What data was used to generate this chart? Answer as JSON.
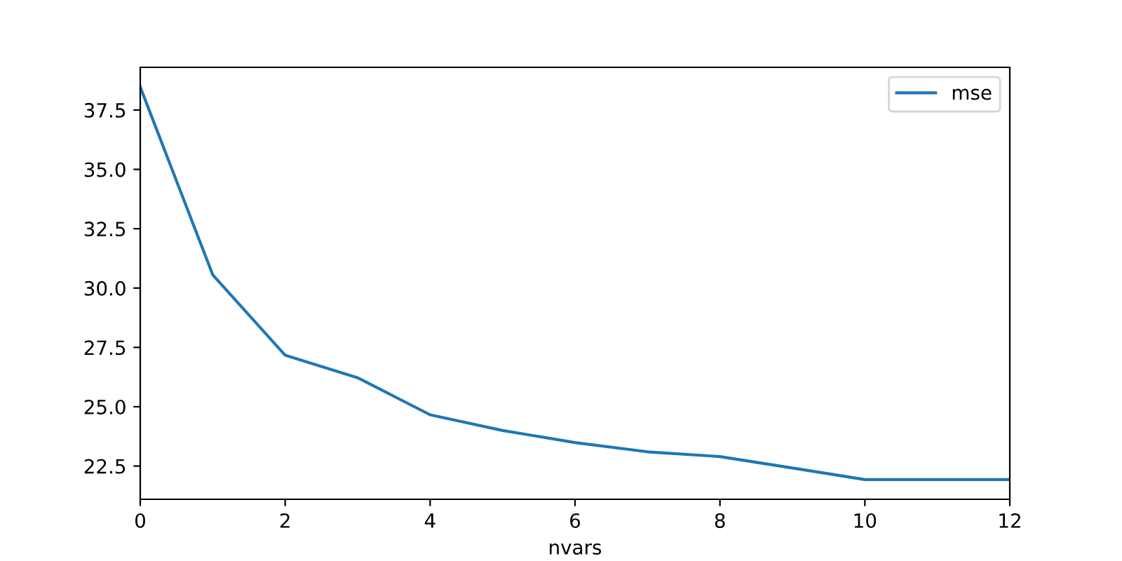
{
  "chart_data": {
    "type": "line",
    "xlabel": "nvars",
    "x": [
      0,
      1,
      2,
      3,
      4,
      5,
      6,
      7,
      8,
      9,
      10,
      11,
      12
    ],
    "series": [
      {
        "name": "mse",
        "color": "#1f77b4",
        "values": [
          38.47,
          30.56,
          27.17,
          26.22,
          24.66,
          24.0,
          23.49,
          23.1,
          22.9,
          22.42,
          21.93,
          21.93,
          21.93
        ]
      }
    ],
    "xlim": [
      0,
      12
    ],
    "xticks": [
      0,
      2,
      4,
      6,
      8,
      10,
      12
    ],
    "ylim": [
      21.1,
      39.3
    ],
    "yticks": [
      22.5,
      {
        "value": 25,
        "label": "25.0"
      },
      27.5,
      {
        "value": 30,
        "label": "30.0"
      },
      32.5,
      {
        "value": 35,
        "label": "35.0"
      },
      37.5
    ],
    "legend": "upper right",
    "grid": false,
    "marker": "none",
    "line_style": "solid"
  }
}
